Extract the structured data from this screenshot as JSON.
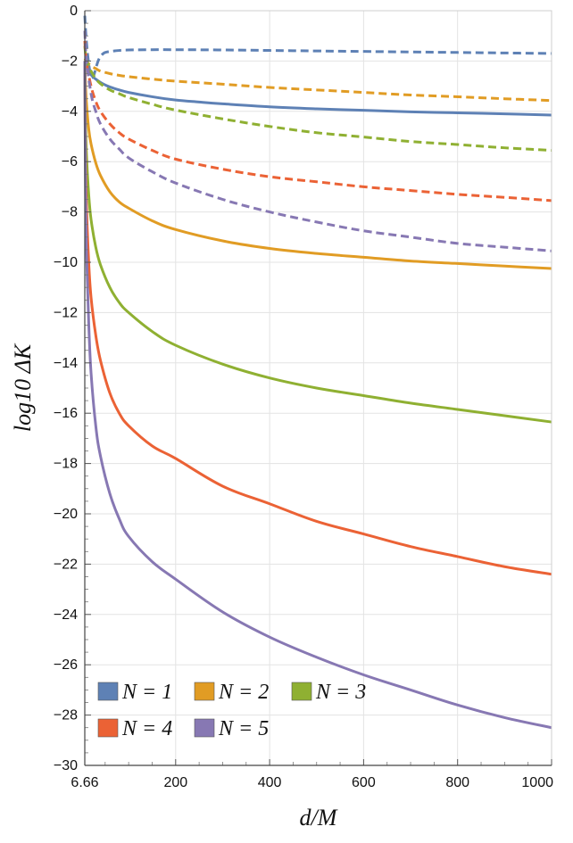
{
  "chart_data": {
    "type": "line",
    "title": "",
    "xlabel": "d/M",
    "ylabel": "log10 ΔK",
    "xlim": [
      6.66,
      1000
    ],
    "ylim": [
      -30,
      0
    ],
    "xticks": [
      6.66,
      200,
      400,
      600,
      800,
      1000
    ],
    "xtick_labels": [
      "6.66",
      "200",
      "400",
      "600",
      "800",
      "1000"
    ],
    "yticks": [
      0,
      -2,
      -4,
      -6,
      -8,
      -10,
      -12,
      -14,
      -16,
      -18,
      -20,
      -22,
      -24,
      -26,
      -28,
      -30
    ],
    "ytick_labels": [
      "0",
      "−2",
      "−4",
      "−6",
      "−8",
      "−10",
      "−12",
      "−14",
      "−16",
      "−18",
      "−20",
      "−22",
      "−24",
      "−26",
      "−28",
      "−30"
    ],
    "grid": true,
    "legend_position": "lower-left",
    "series": [
      {
        "name": "N = 1",
        "color": "#5E81B5",
        "style": "solid",
        "x": [
          6.66,
          10,
          20,
          30,
          40,
          50,
          60,
          80,
          100,
          150,
          200,
          250,
          300,
          400,
          500,
          600,
          700,
          800,
          900,
          1000
        ],
        "y": [
          -2.0,
          -2.2,
          -2.55,
          -2.72,
          -2.85,
          -2.95,
          -3.03,
          -3.15,
          -3.25,
          -3.42,
          -3.55,
          -3.63,
          -3.7,
          -3.82,
          -3.9,
          -3.96,
          -4.02,
          -4.06,
          -4.1,
          -4.15
        ]
      },
      {
        "name": "N = 1",
        "color": "#5E81B5",
        "style": "dashed",
        "x": [
          6.66,
          10,
          15,
          20,
          25,
          30,
          35,
          40,
          45,
          50,
          60,
          80,
          100,
          150,
          200,
          300,
          400,
          500,
          600,
          700,
          800,
          900,
          1000
        ],
        "y": [
          -0.2,
          -1.2,
          -2.1,
          -2.6,
          -2.6,
          -2.3,
          -2.0,
          -1.82,
          -1.72,
          -1.66,
          -1.62,
          -1.58,
          -1.56,
          -1.55,
          -1.55,
          -1.56,
          -1.58,
          -1.6,
          -1.62,
          -1.64,
          -1.66,
          -1.68,
          -1.7
        ]
      },
      {
        "name": "N = 2",
        "color": "#E19C24",
        "style": "solid",
        "x": [
          6.66,
          8,
          10,
          15,
          20,
          30,
          40,
          60,
          80,
          100,
          150,
          200,
          300,
          400,
          500,
          600,
          700,
          800,
          900,
          1000
        ],
        "y": [
          -2.0,
          -2.8,
          -3.6,
          -4.7,
          -5.3,
          -6.05,
          -6.55,
          -7.2,
          -7.6,
          -7.85,
          -8.35,
          -8.7,
          -9.15,
          -9.45,
          -9.65,
          -9.8,
          -9.95,
          -10.05,
          -10.15,
          -10.25
        ]
      },
      {
        "name": "N = 2",
        "color": "#E19C24",
        "style": "dashed",
        "x": [
          6.66,
          10,
          20,
          30,
          40,
          60,
          80,
          100,
          150,
          200,
          300,
          400,
          500,
          600,
          700,
          800,
          900,
          1000
        ],
        "y": [
          -1.9,
          -2.0,
          -2.2,
          -2.3,
          -2.4,
          -2.5,
          -2.57,
          -2.62,
          -2.72,
          -2.8,
          -2.92,
          -3.05,
          -3.15,
          -3.25,
          -3.35,
          -3.42,
          -3.5,
          -3.57
        ]
      },
      {
        "name": "N = 3",
        "color": "#8FB032",
        "style": "solid",
        "x": [
          6.66,
          8,
          10,
          15,
          20,
          30,
          40,
          60,
          80,
          100,
          150,
          200,
          300,
          400,
          500,
          600,
          700,
          800,
          900,
          1000
        ],
        "y": [
          -2.0,
          -4.2,
          -5.6,
          -7.3,
          -8.3,
          -9.4,
          -10.1,
          -11.0,
          -11.6,
          -12.0,
          -12.75,
          -13.3,
          -14.05,
          -14.6,
          -15.0,
          -15.3,
          -15.6,
          -15.85,
          -16.1,
          -16.35
        ]
      },
      {
        "name": "N = 3",
        "color": "#8FB032",
        "style": "dashed",
        "x": [
          6.66,
          10,
          20,
          30,
          40,
          60,
          80,
          100,
          150,
          200,
          300,
          400,
          500,
          600,
          700,
          800,
          900,
          1000
        ],
        "y": [
          -1.4,
          -1.9,
          -2.4,
          -2.7,
          -2.9,
          -3.15,
          -3.3,
          -3.45,
          -3.72,
          -3.95,
          -4.3,
          -4.6,
          -4.85,
          -5.02,
          -5.2,
          -5.32,
          -5.45,
          -5.55
        ]
      },
      {
        "name": "N = 4",
        "color": "#EB6235",
        "style": "solid",
        "x": [
          6.66,
          8,
          10,
          15,
          20,
          30,
          40,
          60,
          80,
          100,
          150,
          200,
          300,
          400,
          500,
          600,
          700,
          800,
          900,
          1000
        ],
        "y": [
          -2.0,
          -5.5,
          -7.6,
          -10.0,
          -11.4,
          -12.9,
          -13.9,
          -15.2,
          -16.0,
          -16.5,
          -17.3,
          -17.8,
          -18.9,
          -19.6,
          -20.3,
          -20.8,
          -21.3,
          -21.7,
          -22.1,
          -22.4
        ]
      },
      {
        "name": "N = 4",
        "color": "#EB6235",
        "style": "dashed",
        "x": [
          6.66,
          10,
          20,
          30,
          40,
          60,
          80,
          100,
          150,
          200,
          300,
          400,
          500,
          600,
          700,
          800,
          900,
          1000
        ],
        "y": [
          -1.2,
          -2.0,
          -3.0,
          -3.6,
          -4.0,
          -4.5,
          -4.85,
          -5.1,
          -5.55,
          -5.9,
          -6.3,
          -6.6,
          -6.8,
          -7.0,
          -7.15,
          -7.3,
          -7.42,
          -7.55
        ]
      },
      {
        "name": "N = 5",
        "color": "#8778B3",
        "style": "solid",
        "x": [
          6.66,
          8,
          10,
          15,
          20,
          30,
          40,
          60,
          80,
          100,
          150,
          200,
          300,
          400,
          500,
          600,
          700,
          800,
          900,
          1000
        ],
        "y": [
          -2.0,
          -6.5,
          -9.3,
          -12.4,
          -14.4,
          -16.5,
          -17.7,
          -19.2,
          -20.2,
          -20.9,
          -21.9,
          -22.6,
          -23.9,
          -24.9,
          -25.7,
          -26.4,
          -27.0,
          -27.6,
          -28.1,
          -28.5
        ]
      },
      {
        "name": "N = 5",
        "color": "#8778B3",
        "style": "dashed",
        "x": [
          6.66,
          10,
          20,
          30,
          40,
          60,
          80,
          100,
          150,
          200,
          300,
          400,
          500,
          600,
          700,
          800,
          900,
          1000
        ],
        "y": [
          -0.8,
          -1.9,
          -3.3,
          -4.0,
          -4.5,
          -5.1,
          -5.5,
          -5.85,
          -6.4,
          -6.85,
          -7.5,
          -8.0,
          -8.4,
          -8.75,
          -9.0,
          -9.25,
          -9.4,
          -9.55
        ]
      }
    ],
    "legend": [
      {
        "label": "N = 1",
        "color": "#5E81B5"
      },
      {
        "label": "N = 2",
        "color": "#E19C24"
      },
      {
        "label": "N = 3",
        "color": "#8FB032"
      },
      {
        "label": "N = 4",
        "color": "#EB6235"
      },
      {
        "label": "N = 5",
        "color": "#8778B3"
      }
    ]
  }
}
